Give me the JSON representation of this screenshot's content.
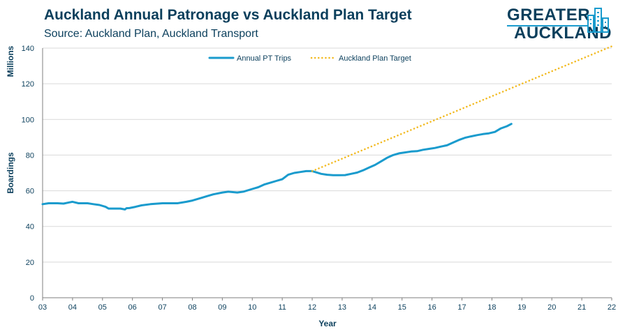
{
  "header": {
    "title": "Auckland Annual Patronage vs Auckland Plan Target",
    "subtitle": "Source: Auckland Plan, Auckland Transport"
  },
  "logo": {
    "line1": "GREATER",
    "line2": "AUCKLAND",
    "colors": {
      "text": "#0b3f5c",
      "accent": "#1a9bcd"
    }
  },
  "chart_data": {
    "type": "line",
    "title": "Auckland Annual Patronage vs Auckland Plan Target",
    "subtitle": "Source: Auckland Plan, Auckland Transport",
    "xlabel": "Year",
    "ylabel_top": "Millions",
    "ylabel": "Boardings",
    "xlim": [
      3,
      22
    ],
    "ylim": [
      0,
      140
    ],
    "x_ticks": [
      3,
      4,
      5,
      6,
      7,
      8,
      9,
      10,
      11,
      12,
      13,
      14,
      15,
      16,
      17,
      18,
      19,
      20,
      21,
      22
    ],
    "x_tick_labels": [
      "03",
      "04",
      "05",
      "06",
      "07",
      "08",
      "09",
      "10",
      "11",
      "12",
      "13",
      "14",
      "15",
      "16",
      "17",
      "18",
      "19",
      "20",
      "21",
      "22"
    ],
    "y_ticks": [
      0,
      20,
      40,
      60,
      80,
      100,
      120,
      140
    ],
    "grid": "horizontal",
    "legend_position": "top-center",
    "series": [
      {
        "name": "Annual PT Trips",
        "style": "solid",
        "color": "#1a9bcd",
        "x": [
          3.0,
          3.2,
          3.5,
          3.7,
          3.9,
          4.0,
          4.2,
          4.5,
          4.7,
          4.9,
          5.1,
          5.2,
          5.5,
          5.6,
          5.75,
          5.8,
          5.9,
          6.1,
          6.3,
          6.6,
          7.0,
          7.5,
          7.8,
          8.0,
          8.3,
          8.5,
          8.7,
          9.0,
          9.2,
          9.5,
          9.7,
          10.0,
          10.2,
          10.4,
          10.6,
          10.8,
          11.0,
          11.2,
          11.4,
          11.6,
          11.8,
          12.0,
          12.1,
          12.3,
          12.5,
          12.7,
          12.9,
          13.1,
          13.3,
          13.5,
          13.7,
          13.9,
          14.1,
          14.3,
          14.5,
          14.7,
          14.9,
          15.1,
          15.3,
          15.5,
          15.7,
          15.9,
          16.1,
          16.3,
          16.5,
          16.7,
          16.9,
          17.1,
          17.3,
          17.5,
          17.7,
          17.9,
          18.1,
          18.3,
          18.5,
          18.65
        ],
        "values": [
          52.5,
          53,
          53,
          52.8,
          53.5,
          53.8,
          53,
          53,
          52.5,
          52,
          51,
          50,
          50,
          50,
          49.5,
          50.2,
          50.3,
          51,
          51.8,
          52.5,
          53,
          53,
          53.8,
          54.5,
          56,
          57,
          58,
          59,
          59.5,
          59,
          59.5,
          61,
          62,
          63.5,
          64.5,
          65.5,
          66.5,
          69,
          70,
          70.5,
          71,
          71,
          70.5,
          69.5,
          69,
          68.7,
          68.7,
          68.8,
          69.5,
          70.2,
          71.5,
          73,
          74.5,
          76.5,
          78.5,
          80,
          81,
          81.5,
          82,
          82.2,
          83,
          83.5,
          84,
          84.8,
          85.5,
          87,
          88.5,
          89.7,
          90.5,
          91.2,
          91.8,
          92.2,
          93,
          95,
          96.2,
          97.5
        ]
      },
      {
        "name": "Auckland Plan Target",
        "style": "dotted",
        "color": "#f2b91e",
        "x": [
          12.0,
          22.0
        ],
        "values": [
          71,
          141
        ]
      }
    ]
  }
}
